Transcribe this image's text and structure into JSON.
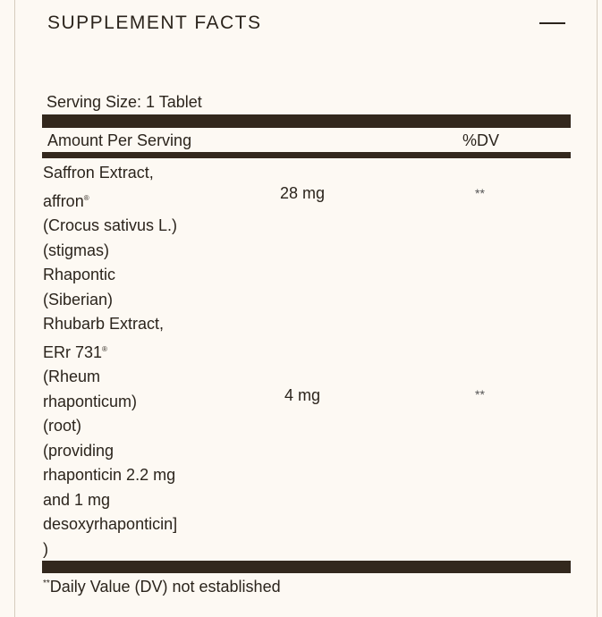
{
  "title": "SUPPLEMENT FACTS",
  "collapse_icon": "minus-icon",
  "serving_size": "Serving Size: 1 Tablet",
  "header": {
    "amount": "Amount Per Serving",
    "dv": "%DV"
  },
  "ingredients": [
    {
      "lines": [
        "Saffron Extract,",
        "affron®",
        "(Crocus sativus L.)",
        "(stigmas)"
      ],
      "amount": "28 mg",
      "dv": "**"
    },
    {
      "lines": [
        "Rhapontic",
        "(Siberian)",
        "Rhubarb Extract,",
        "ERr 731®",
        "(Rheum",
        "rhaponticum)",
        "(root)",
        "(providing",
        "rhaponticin 2.2 mg",
        "and 1 mg",
        "desoxyrhaponticin]",
        ")"
      ],
      "amount": "4 mg",
      "dv": "**"
    }
  ],
  "footnote": {
    "mark": "**",
    "text": "Daily Value (DV) not established"
  },
  "colors": {
    "background": "#fdf9f3",
    "bar": "#33281d",
    "text": "#2b241c"
  }
}
